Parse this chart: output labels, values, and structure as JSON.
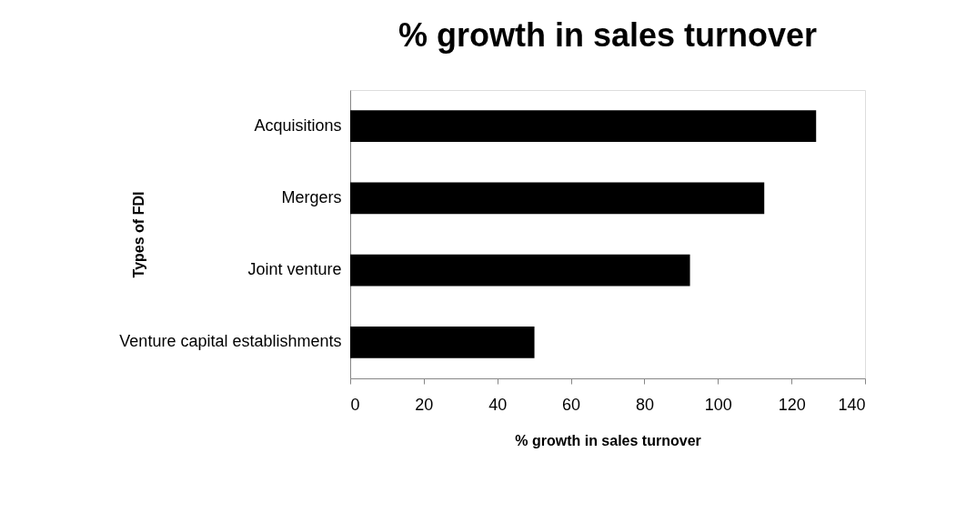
{
  "chart_data": {
    "type": "bar",
    "orientation": "horizontal",
    "title": "% growth in sales turnover",
    "xlabel": "% growth in sales turnover",
    "ylabel": "Types of FDI",
    "categories": [
      "Acquisitions",
      "Mergers",
      "Joint venture",
      "Venture capital establishments"
    ],
    "values": [
      126.7,
      112.6,
      92.4,
      50.1
    ],
    "color": "#000000",
    "xlim": [
      0,
      140
    ],
    "xticks": [
      0,
      20,
      40,
      60,
      80,
      100,
      120,
      140
    ],
    "grid": false
  }
}
